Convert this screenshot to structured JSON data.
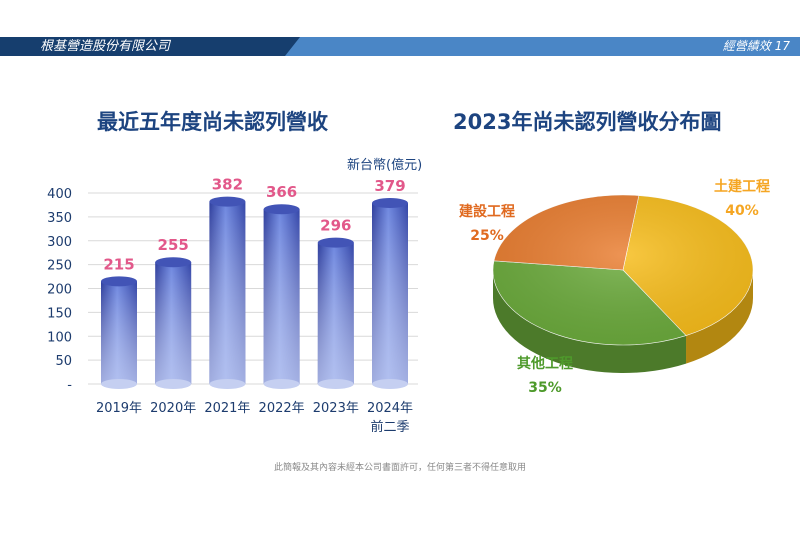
{
  "header": {
    "company": "根基營造股份有限公司",
    "section": "經營績效",
    "page_number": "17"
  },
  "bar_chart": {
    "title": "最近五年度尚未認列營收",
    "unit": "新台幣(億元)"
  },
  "pie_chart": {
    "title": "2023年尚未認列營收分布圖"
  },
  "footer": {
    "text": "此簡報及其內容未經本公司書面許可，任何第三者不得任意取用"
  },
  "chart_data": [
    {
      "type": "bar",
      "title": "最近五年度尚未認列營收",
      "ylabel": "新台幣(億元)",
      "categories": [
        "2019年",
        "2020年",
        "2021年",
        "2022年",
        "2023年",
        "2024年前二季"
      ],
      "category_lines": [
        [
          "2019年"
        ],
        [
          "2020年"
        ],
        [
          "2021年"
        ],
        [
          "2022年"
        ],
        [
          "2023年"
        ],
        [
          "2024年",
          "前二季"
        ]
      ],
      "values": [
        215,
        255,
        382,
        366,
        296,
        379
      ],
      "ylim": [
        0,
        400
      ],
      "yticks": [
        0,
        50,
        100,
        150,
        200,
        250,
        300,
        350,
        400
      ],
      "ytick_labels": [
        "-",
        "50",
        "100",
        "150",
        "200",
        "250",
        "300",
        "350",
        "400"
      ],
      "grid": true,
      "colors": {
        "bar": "#4a5fc8",
        "label": "#e2588a"
      }
    },
    {
      "type": "pie",
      "title": "2023年尚未認列營收分布圖",
      "slices": [
        {
          "label": "土建工程",
          "value": 40,
          "value_label": "40%",
          "color": "#f7bc18",
          "label_color": "#f5a623"
        },
        {
          "label": "其他工程",
          "value": 35,
          "value_label": "35%",
          "color": "#6aaa3a",
          "label_color": "#4e9a2b"
        },
        {
          "label": "建設工程",
          "value": 25,
          "value_label": "25%",
          "color": "#e97c2e",
          "label_color": "#e06a20"
        }
      ]
    }
  ]
}
